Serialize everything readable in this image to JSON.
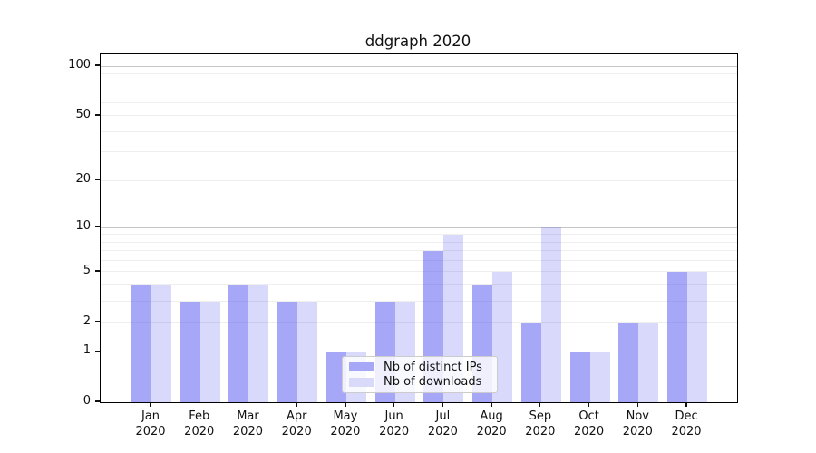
{
  "chart_data": {
    "type": "bar",
    "title": "ddgraph 2020",
    "xlabel": "",
    "ylabel": "",
    "categories": [
      "Jan 2020",
      "Feb 2020",
      "Mar 2020",
      "Apr 2020",
      "May 2020",
      "Jun 2020",
      "Jul 2020",
      "Aug 2020",
      "Sep 2020",
      "Oct 2020",
      "Nov 2020",
      "Dec 2020"
    ],
    "series": [
      {
        "name": "Nb of distinct IPs",
        "values": [
          4,
          3,
          4,
          3,
          1,
          3,
          7,
          4,
          2,
          1,
          2,
          5
        ],
        "color": "rgba(80,80,240,0.5)",
        "swatch": "#a7a7f7"
      },
      {
        "name": "Nb of downloads",
        "values": [
          4,
          3,
          4,
          3,
          1,
          3,
          9,
          5,
          10,
          1,
          2,
          5
        ],
        "color": "rgba(80,80,240,0.22)",
        "swatch": "#d9d9fa"
      }
    ],
    "yscale": "log1p",
    "ylim": [
      0,
      118
    ],
    "yticks": [
      0,
      1,
      2,
      5,
      10,
      20,
      50,
      100
    ],
    "major_gridlines": [
      1,
      10,
      100
    ],
    "minor_gridlines": [
      2,
      3,
      4,
      5,
      6,
      7,
      8,
      9,
      20,
      30,
      40,
      50,
      60,
      70,
      80,
      90
    ],
    "grid": true,
    "legend_position": "lower center-left"
  },
  "colors": {
    "bar_dark_composite": "#a6a6f7",
    "bar_light_composite": "#d9d9fa",
    "grid_major": "#c6c6c6",
    "grid_minor": "#eeeeee",
    "axis": "#000000",
    "text": "#111111",
    "legend_border": "#cccccc"
  }
}
